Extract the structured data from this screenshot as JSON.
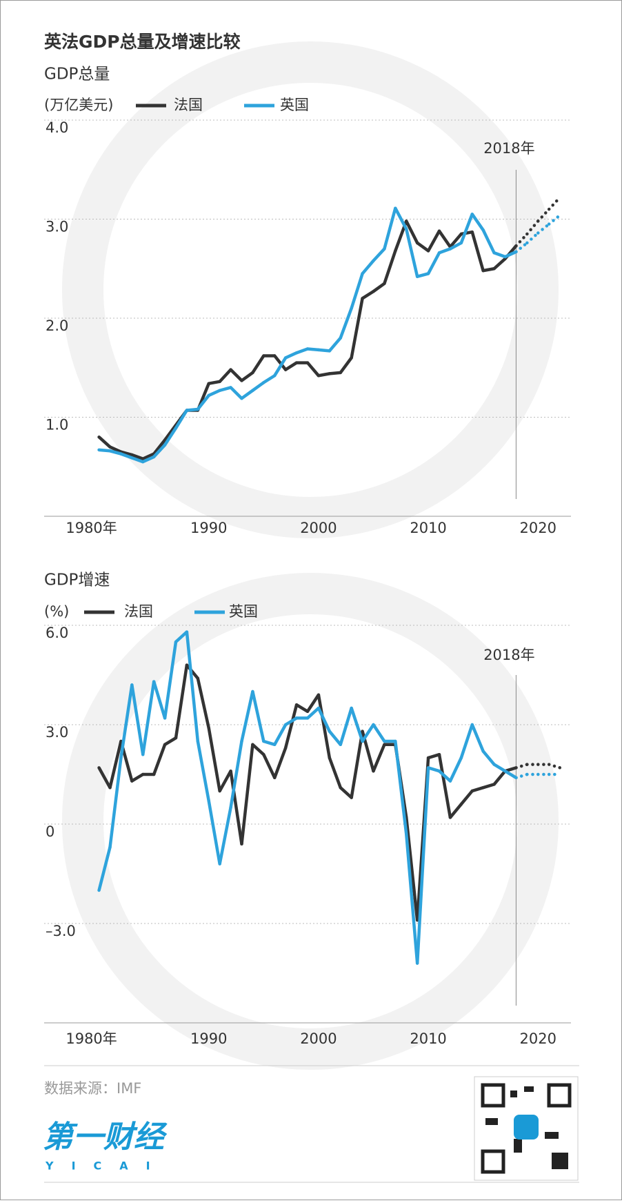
{
  "title": "英法GDP总量及增速比较",
  "chart_data": [
    {
      "type": "line",
      "subtitle": "GDP总量",
      "unit": "(万亿美元)",
      "x": [
        1980,
        1981,
        1982,
        1983,
        1984,
        1985,
        1986,
        1987,
        1988,
        1989,
        1990,
        1991,
        1992,
        1993,
        1994,
        1995,
        1996,
        1997,
        1998,
        1999,
        2000,
        2001,
        2002,
        2003,
        2004,
        2005,
        2006,
        2007,
        2008,
        2009,
        2010,
        2011,
        2012,
        2013,
        2014,
        2015,
        2016,
        2017,
        2018,
        2019,
        2020,
        2021,
        2022
      ],
      "series": [
        {
          "name": "法国",
          "color": "#333333",
          "values": [
            0.8,
            0.7,
            0.65,
            0.62,
            0.58,
            0.63,
            0.77,
            0.92,
            1.07,
            1.07,
            1.34,
            1.36,
            1.48,
            1.37,
            1.45,
            1.62,
            1.62,
            1.48,
            1.55,
            1.55,
            1.42,
            1.44,
            1.45,
            1.6,
            2.2,
            2.27,
            2.35,
            2.68,
            2.98,
            2.76,
            2.68,
            2.88,
            2.72,
            2.85,
            2.87,
            2.48,
            2.5,
            2.6,
            2.73,
            2.85,
            2.98,
            3.1,
            3.22
          ]
        },
        {
          "name": "英国",
          "color": "#2ea3dc",
          "values": [
            0.67,
            0.66,
            0.63,
            0.59,
            0.55,
            0.6,
            0.72,
            0.89,
            1.07,
            1.08,
            1.22,
            1.27,
            1.3,
            1.19,
            1.27,
            1.35,
            1.42,
            1.6,
            1.65,
            1.69,
            1.68,
            1.67,
            1.8,
            2.1,
            2.45,
            2.58,
            2.7,
            3.11,
            2.9,
            2.42,
            2.45,
            2.66,
            2.7,
            2.76,
            3.05,
            2.89,
            2.66,
            2.62,
            2.67,
            2.76,
            2.86,
            2.95,
            3.04
          ]
        }
      ],
      "annotation": {
        "value": 2018,
        "label": "2018年"
      },
      "xlim": [
        1975,
        2023
      ],
      "xticks": [
        {
          "value": 1980,
          "label": "1980年"
        },
        1990,
        2000,
        2010,
        2020
      ],
      "ylim": [
        0,
        4
      ],
      "yticks": [
        {
          "value": 1,
          "label": "1.0"
        },
        {
          "value": 2,
          "label": "2.0"
        },
        {
          "value": 3,
          "label": "3.0"
        },
        {
          "value": 4,
          "label": "4.0"
        }
      ],
      "grid": true
    },
    {
      "type": "line",
      "subtitle": "GDP增速",
      "unit": "(%)",
      "x": [
        1980,
        1981,
        1982,
        1983,
        1984,
        1985,
        1986,
        1987,
        1988,
        1989,
        1990,
        1991,
        1992,
        1993,
        1994,
        1995,
        1996,
        1997,
        1998,
        1999,
        2000,
        2001,
        2002,
        2003,
        2004,
        2005,
        2006,
        2007,
        2008,
        2009,
        2010,
        2011,
        2012,
        2013,
        2014,
        2015,
        2016,
        2017,
        2018,
        2019,
        2020,
        2021,
        2022
      ],
      "series": [
        {
          "name": "法国",
          "color": "#333333",
          "values": [
            1.7,
            1.1,
            2.5,
            1.3,
            1.5,
            1.5,
            2.4,
            2.6,
            4.8,
            4.4,
            2.9,
            1.0,
            1.6,
            -0.6,
            2.4,
            2.1,
            1.4,
            2.3,
            3.6,
            3.4,
            3.9,
            2.0,
            1.1,
            0.8,
            2.8,
            1.6,
            2.4,
            2.4,
            0.2,
            -2.9,
            2.0,
            2.1,
            0.2,
            0.6,
            1.0,
            1.1,
            1.2,
            1.6,
            1.7,
            1.8,
            1.8,
            1.8,
            1.7
          ]
        },
        {
          "name": "英国",
          "color": "#2ea3dc",
          "values": [
            -2.0,
            -0.7,
            2.0,
            4.2,
            2.1,
            4.3,
            3.2,
            5.5,
            5.8,
            2.5,
            0.7,
            -1.2,
            0.5,
            2.5,
            4.0,
            2.5,
            2.4,
            3.0,
            3.2,
            3.2,
            3.5,
            2.8,
            2.4,
            3.5,
            2.5,
            3.0,
            2.5,
            2.5,
            -0.3,
            -4.2,
            1.7,
            1.6,
            1.3,
            2.0,
            3.0,
            2.2,
            1.8,
            1.6,
            1.4,
            1.5,
            1.5,
            1.5,
            1.5
          ]
        }
      ],
      "annotation": {
        "value": 2018,
        "label": "2018年"
      },
      "xlim": [
        1975,
        2023
      ],
      "xticks": [
        {
          "value": 1980,
          "label": "1980年"
        },
        1990,
        2000,
        2010,
        2020
      ],
      "ylim": [
        -6,
        6
      ],
      "yticks": [
        {
          "value": -3,
          "label": "–3.0"
        },
        0,
        {
          "value": 3,
          "label": "3.0"
        },
        {
          "value": 6,
          "label": "6.0"
        }
      ],
      "grid": true
    }
  ],
  "footer": {
    "source": "数据来源：IMF",
    "brand": "第一财经",
    "brand_en": "YICAI"
  }
}
